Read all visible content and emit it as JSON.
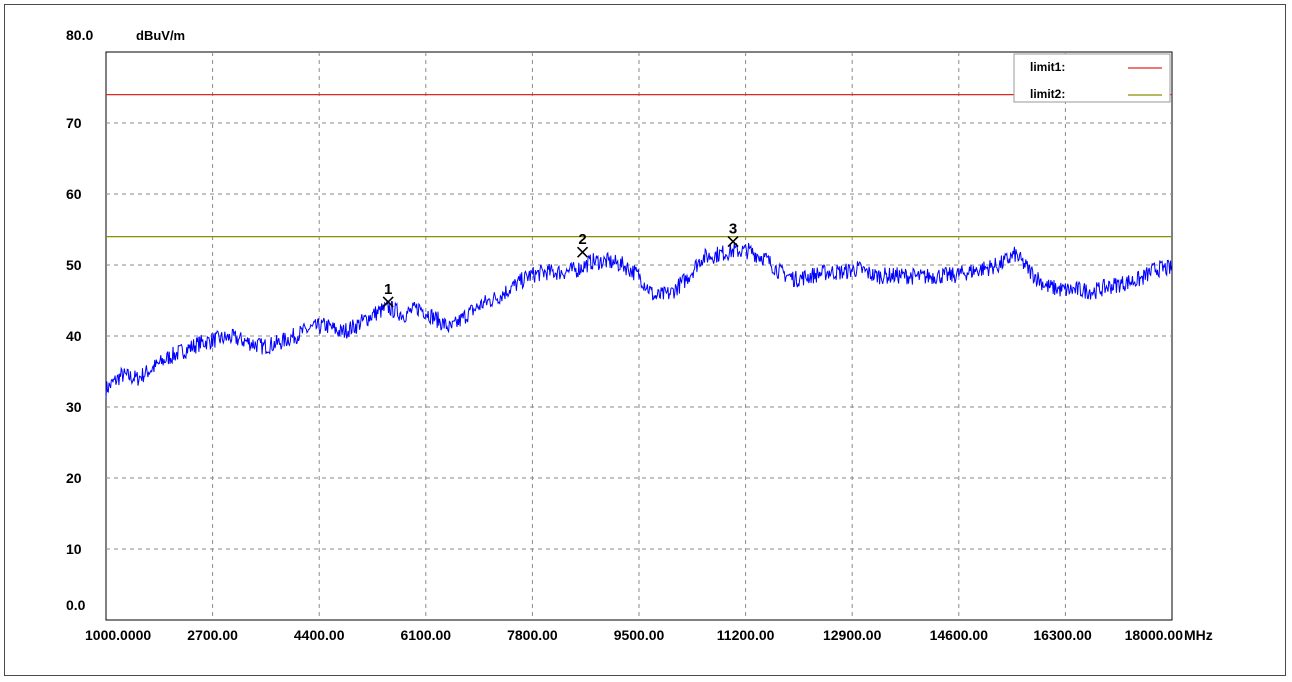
{
  "chart_data": {
    "type": "line",
    "ylabel": "dBuV/m",
    "xunit": "MHz",
    "xlim": [
      1000,
      18000
    ],
    "ylim": [
      0,
      80
    ],
    "grid": true,
    "legend_placement": "top-right",
    "y_ticks": [
      {
        "value": 80,
        "label": "80.0"
      },
      {
        "value": 70,
        "label": "70"
      },
      {
        "value": 60,
        "label": "60"
      },
      {
        "value": 50,
        "label": "50"
      },
      {
        "value": 40,
        "label": "40"
      },
      {
        "value": 30,
        "label": "30"
      },
      {
        "value": 20,
        "label": "20"
      },
      {
        "value": 10,
        "label": "10"
      },
      {
        "value": 0,
        "label": "0.0"
      }
    ],
    "x_ticks": [
      {
        "value": 1000,
        "label": "1000.0000"
      },
      {
        "value": 2700,
        "label": "2700.00"
      },
      {
        "value": 4400,
        "label": "4400.00"
      },
      {
        "value": 6100,
        "label": "6100.00"
      },
      {
        "value": 7800,
        "label": "7800.00"
      },
      {
        "value": 9500,
        "label": "9500.00"
      },
      {
        "value": 11200,
        "label": "11200.00"
      },
      {
        "value": 12900,
        "label": "12900.00"
      },
      {
        "value": 14600,
        "label": "14600.00"
      },
      {
        "value": 16300,
        "label": "16300.00"
      },
      {
        "value": 18000,
        "label": "18000.00"
      }
    ],
    "limits": [
      {
        "name": "limit1:",
        "value": 74,
        "color": "#e0281e"
      },
      {
        "name": "limit2:",
        "value": 54,
        "color": "#8c8c00"
      }
    ],
    "markers": [
      {
        "label": "1",
        "x": 5500,
        "y": 44.8
      },
      {
        "label": "2",
        "x": 8600,
        "y": 51.8
      },
      {
        "label": "3",
        "x": 11000,
        "y": 53.3
      }
    ],
    "series": [
      {
        "color": "#0000ff",
        "x": [
          1000,
          1250,
          1500,
          1750,
          2000,
          2250,
          2500,
          2750,
          3000,
          3250,
          3500,
          3750,
          4000,
          4250,
          4500,
          4750,
          5000,
          5250,
          5500,
          5750,
          6000,
          6250,
          6500,
          6750,
          7000,
          7250,
          7500,
          7750,
          8000,
          8250,
          8500,
          8750,
          9000,
          9250,
          9500,
          9750,
          10000,
          10250,
          10500,
          10750,
          11000,
          11250,
          11500,
          11750,
          12000,
          12250,
          12500,
          12750,
          13000,
          13250,
          13500,
          13750,
          14000,
          14250,
          14500,
          14750,
          15000,
          15250,
          15500,
          15750,
          16000,
          16250,
          16500,
          16750,
          17000,
          17250,
          17500,
          17750,
          18000
        ],
        "y": [
          32.5,
          34.5,
          34,
          35.5,
          37,
          38,
          39,
          39.5,
          39.8,
          39.2,
          38.5,
          39,
          40,
          41,
          41.5,
          40.5,
          41.5,
          43,
          44,
          43,
          44,
          42.5,
          41,
          43,
          44.5,
          45.5,
          47,
          48.5,
          49,
          49,
          49.3,
          50.5,
          50.5,
          50,
          48.5,
          45.5,
          46,
          48,
          51,
          51.5,
          52,
          52,
          51,
          49,
          48,
          48.5,
          49,
          49,
          49.5,
          48.5,
          48.5,
          48.5,
          48.3,
          48.5,
          48.5,
          49,
          49.5,
          50,
          51.5,
          49,
          47,
          46.5,
          46.5,
          46.3,
          47,
          47.5,
          48,
          49.5,
          49.5
        ]
      }
    ]
  }
}
